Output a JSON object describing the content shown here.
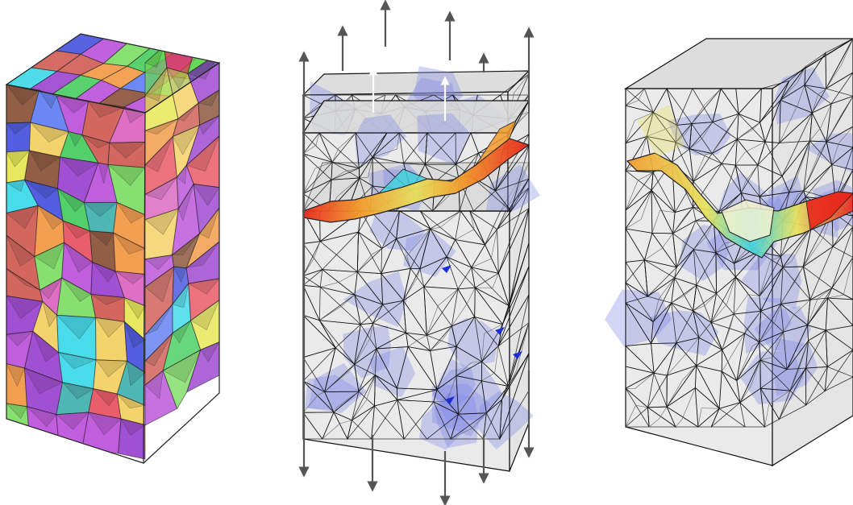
{
  "figure": {
    "panels": [
      {
        "id": "polycrystal",
        "kind": "voronoi-grain-block",
        "description_colors": [
          "#e53b4b",
          "#2d3bd9",
          "#22d3e6",
          "#e3e23a",
          "#8e2ac9",
          "#2ec64a",
          "#f08a2b",
          "#b23ad6",
          "#28a6a6",
          "#d84fb8",
          "#6bd84f",
          "#f2c94c",
          "#4a6cf0",
          "#c9463d",
          "#7a3a1d"
        ]
      },
      {
        "id": "loaded-mesh",
        "kind": "tetrahedral-mesh-with-crack",
        "arrows_up": 6,
        "arrows_down": 5,
        "white_arrows": 2
      },
      {
        "id": "cracked-mesh",
        "kind": "tetrahedral-mesh-with-crack"
      }
    ],
    "colors": {
      "mesh_fill": "#d9d9d9",
      "mesh_edge": "#111111",
      "grain_tint": "#7f86e6",
      "crack_hot": "#e8261c",
      "crack_warm": "#f29a2a",
      "crack_yellow": "#e8e25c",
      "crack_cyan": "#3fd4e0",
      "arrow": "#555555"
    }
  }
}
